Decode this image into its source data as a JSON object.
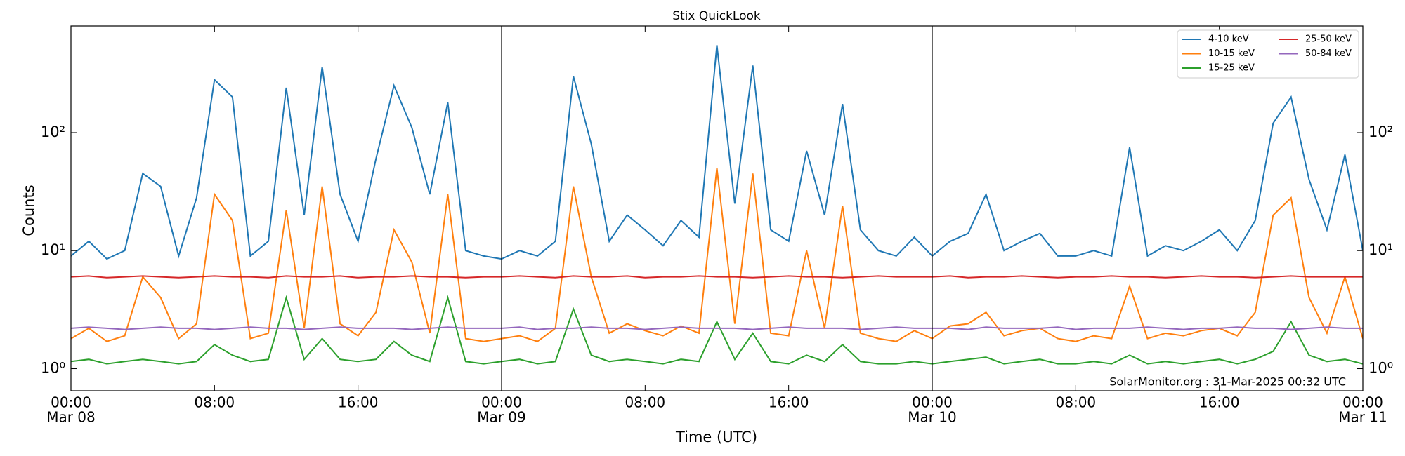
{
  "chart_data": {
    "type": "line",
    "title": "Stix QuickLook",
    "xlabel": "Time (UTC)",
    "ylabel": "Counts",
    "annotation": "SolarMonitor.org : 31-Mar-2025 00:32 UTC",
    "log_y": true,
    "legend": "upper right",
    "ylim": [
      0.65,
      800
    ],
    "yticks": [
      {
        "value": 1,
        "label": "10⁰"
      },
      {
        "value": 10,
        "label": "10¹"
      },
      {
        "value": 100,
        "label": "10²"
      }
    ],
    "xlim": [
      "Mar 08 00:00",
      "Mar 11 00:00"
    ],
    "xticks": [
      {
        "value": "Mar 08 00:00",
        "label": [
          "00:00",
          "Mar 08"
        ]
      },
      {
        "value": "Mar 08 08:00",
        "label": "08:00"
      },
      {
        "value": "Mar 08 16:00",
        "label": "16:00"
      },
      {
        "value": "Mar 09 00:00",
        "label": [
          "00:00",
          "Mar 09"
        ]
      },
      {
        "value": "Mar 09 08:00",
        "label": "08:00"
      },
      {
        "value": "Mar 09 16:00",
        "label": "16:00"
      },
      {
        "value": "Mar 10 00:00",
        "label": [
          "00:00",
          "Mar 10"
        ]
      },
      {
        "value": "Mar 10 08:00",
        "label": "08:00"
      },
      {
        "value": "Mar 10 16:00",
        "label": "16:00"
      },
      {
        "value": "Mar 11 00:00",
        "label": [
          "00:00",
          "Mar 11"
        ]
      }
    ],
    "x": [
      "Mar 08 00:00",
      "Mar 08 01:00",
      "Mar 08 02:00",
      "Mar 08 03:00",
      "Mar 08 04:00",
      "Mar 08 05:00",
      "Mar 08 06:00",
      "Mar 08 07:00",
      "Mar 08 08:00",
      "Mar 08 09:00",
      "Mar 08 10:00",
      "Mar 08 11:00",
      "Mar 08 12:00",
      "Mar 08 13:00",
      "Mar 08 14:00",
      "Mar 08 15:00",
      "Mar 08 16:00",
      "Mar 08 17:00",
      "Mar 08 18:00",
      "Mar 08 19:00",
      "Mar 08 20:00",
      "Mar 08 21:00",
      "Mar 08 22:00",
      "Mar 08 23:00",
      "Mar 09 00:00",
      "Mar 09 01:00",
      "Mar 09 02:00",
      "Mar 09 03:00",
      "Mar 09 04:00",
      "Mar 09 05:00",
      "Mar 09 06:00",
      "Mar 09 07:00",
      "Mar 09 08:00",
      "Mar 09 09:00",
      "Mar 09 10:00",
      "Mar 09 11:00",
      "Mar 09 12:00",
      "Mar 09 13:00",
      "Mar 09 14:00",
      "Mar 09 15:00",
      "Mar 09 16:00",
      "Mar 09 17:00",
      "Mar 09 18:00",
      "Mar 09 19:00",
      "Mar 09 20:00",
      "Mar 09 21:00",
      "Mar 09 22:00",
      "Mar 09 23:00",
      "Mar 10 00:00",
      "Mar 10 01:00",
      "Mar 10 02:00",
      "Mar 10 03:00",
      "Mar 10 04:00",
      "Mar 10 05:00",
      "Mar 10 06:00",
      "Mar 10 07:00",
      "Mar 10 08:00",
      "Mar 10 09:00",
      "Mar 10 10:00",
      "Mar 10 11:00",
      "Mar 10 12:00",
      "Mar 10 13:00",
      "Mar 10 14:00",
      "Mar 10 15:00",
      "Mar 10 16:00",
      "Mar 10 17:00",
      "Mar 10 18:00",
      "Mar 10 19:00",
      "Mar 10 20:00",
      "Mar 10 21:00",
      "Mar 10 22:00",
      "Mar 10 23:00",
      "Mar 11 00:00"
    ],
    "series": [
      {
        "name": "4-10 keV",
        "color": "#1f77b4",
        "values": [
          9,
          12,
          8.5,
          10,
          45,
          35,
          9,
          28,
          280,
          200,
          9,
          12,
          240,
          20,
          360,
          30,
          12,
          60,
          250,
          110,
          30,
          180,
          10,
          9,
          8.5,
          10,
          9,
          12,
          300,
          80,
          12,
          20,
          15,
          11,
          18,
          13,
          550,
          25,
          370,
          15,
          12,
          70,
          20,
          175,
          15,
          10,
          9,
          13,
          9,
          12,
          14,
          30,
          10,
          12,
          14,
          9,
          9,
          10,
          9,
          75,
          9,
          11,
          10,
          12,
          15,
          10,
          18,
          120,
          200,
          40,
          15,
          65,
          10
        ]
      },
      {
        "name": "10-15 keV",
        "color": "#ff7f0e",
        "values": [
          1.8,
          2.2,
          1.7,
          1.9,
          6,
          4,
          1.8,
          2.4,
          30,
          18,
          1.8,
          2,
          22,
          2.2,
          35,
          2.4,
          1.9,
          3,
          15,
          8,
          2,
          30,
          1.8,
          1.7,
          1.8,
          1.9,
          1.7,
          2.2,
          35,
          6,
          2,
          2.4,
          2.1,
          1.9,
          2.3,
          2,
          50,
          2.4,
          45,
          2,
          1.9,
          10,
          2.2,
          24,
          2,
          1.8,
          1.7,
          2.1,
          1.8,
          2.3,
          2.4,
          3,
          1.9,
          2.1,
          2.2,
          1.8,
          1.7,
          1.9,
          1.8,
          5,
          1.8,
          2,
          1.9,
          2.1,
          2.2,
          1.9,
          3,
          20,
          28,
          4,
          2,
          6,
          1.8
        ]
      },
      {
        "name": "15-25 keV",
        "color": "#2ca02c",
        "values": [
          1.15,
          1.2,
          1.1,
          1.15,
          1.2,
          1.15,
          1.1,
          1.15,
          1.6,
          1.3,
          1.15,
          1.2,
          4,
          1.2,
          1.8,
          1.2,
          1.15,
          1.2,
          1.7,
          1.3,
          1.15,
          4,
          1.15,
          1.1,
          1.15,
          1.2,
          1.1,
          1.15,
          3.2,
          1.3,
          1.15,
          1.2,
          1.15,
          1.1,
          1.2,
          1.15,
          2.5,
          1.2,
          2,
          1.15,
          1.1,
          1.3,
          1.15,
          1.6,
          1.15,
          1.1,
          1.1,
          1.15,
          1.1,
          1.15,
          1.2,
          1.25,
          1.1,
          1.15,
          1.2,
          1.1,
          1.1,
          1.15,
          1.1,
          1.3,
          1.1,
          1.15,
          1.1,
          1.15,
          1.2,
          1.1,
          1.2,
          1.4,
          2.5,
          1.3,
          1.15,
          1.2,
          1.1
        ]
      },
      {
        "name": "25-50 keV",
        "color": "#d62728",
        "values": [
          6,
          6.1,
          5.9,
          6,
          6.1,
          6,
          5.9,
          6,
          6.1,
          6,
          6,
          5.9,
          6.1,
          6,
          6,
          6.1,
          5.9,
          6,
          6,
          6.1,
          6,
          6,
          5.9,
          6,
          6,
          6.1,
          6,
          5.9,
          6.1,
          6,
          6,
          6.1,
          5.9,
          6,
          6,
          6.1,
          6,
          6,
          5.9,
          6,
          6.1,
          6,
          6,
          5.9,
          6,
          6.1,
          6,
          6,
          6,
          6.1,
          5.9,
          6,
          6,
          6.1,
          6,
          5.9,
          6,
          6,
          6.1,
          6,
          6,
          5.9,
          6,
          6.1,
          6,
          6,
          5.9,
          6,
          6.1,
          6,
          6,
          6,
          6
        ]
      },
      {
        "name": "50-84 keV",
        "color": "#9467bd",
        "values": [
          2.2,
          2.25,
          2.2,
          2.15,
          2.2,
          2.25,
          2.2,
          2.2,
          2.15,
          2.2,
          2.25,
          2.2,
          2.2,
          2.15,
          2.2,
          2.25,
          2.2,
          2.2,
          2.2,
          2.15,
          2.2,
          2.25,
          2.2,
          2.2,
          2.2,
          2.25,
          2.15,
          2.2,
          2.2,
          2.25,
          2.2,
          2.2,
          2.15,
          2.2,
          2.25,
          2.2,
          2.2,
          2.2,
          2.15,
          2.2,
          2.25,
          2.2,
          2.2,
          2.2,
          2.15,
          2.2,
          2.25,
          2.2,
          2.2,
          2.2,
          2.15,
          2.25,
          2.2,
          2.2,
          2.2,
          2.25,
          2.15,
          2.2,
          2.2,
          2.2,
          2.25,
          2.2,
          2.15,
          2.2,
          2.2,
          2.25,
          2.2,
          2.2,
          2.15,
          2.2,
          2.25,
          2.2,
          2.2
        ]
      }
    ]
  }
}
